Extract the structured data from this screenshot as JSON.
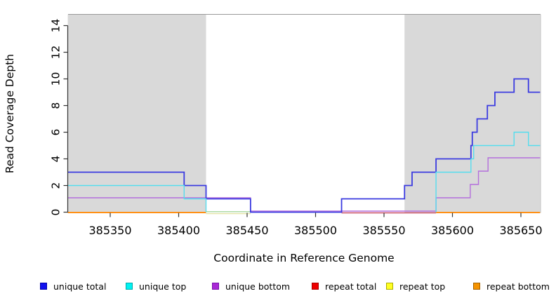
{
  "chart_data": {
    "type": "line",
    "title": "",
    "xlabel": "Coordinate in Reference Genome",
    "ylabel": "Read Coverage Depth",
    "x_range": [
      385319,
      385664
    ],
    "y_range": [
      0,
      15
    ],
    "x_ticks": [
      385350,
      385400,
      385450,
      385500,
      385550,
      385600,
      385650
    ],
    "y_ticks": [
      0,
      2,
      4,
      6,
      8,
      10,
      12,
      14
    ],
    "grid": false,
    "legend_position": "bottom",
    "shading_color": "#D9D9D9",
    "shaded_regions": [
      {
        "from": 385319,
        "to": 385420
      },
      {
        "from": 385565,
        "to": 385664
      }
    ],
    "series": [
      {
        "name": "unique total",
        "color": "#3B3BE0",
        "width": 1.8,
        "steps": [
          [
            385319,
            3
          ],
          [
            385404,
            2
          ],
          [
            385420,
            1
          ],
          [
            385452.5,
            0
          ],
          [
            385519,
            1
          ],
          [
            385565,
            2
          ],
          [
            385570.5,
            3
          ],
          [
            385588,
            4
          ],
          [
            385613.5,
            5
          ],
          [
            385614.5,
            6
          ],
          [
            385618,
            7
          ],
          [
            385625.5,
            8
          ],
          [
            385631,
            9
          ],
          [
            385645,
            10
          ],
          [
            385655.5,
            9
          ]
        ]
      },
      {
        "name": "unique top",
        "color": "#55DDEE",
        "width": 1.4,
        "gap_at_zero": true,
        "steps": [
          [
            385319,
            2
          ],
          [
            385404,
            1
          ],
          [
            385420,
            0
          ],
          [
            385588,
            3
          ],
          [
            385613.5,
            4
          ],
          [
            385615.5,
            5
          ],
          [
            385645,
            6
          ],
          [
            385655.5,
            5
          ]
        ]
      },
      {
        "name": "unique bottom",
        "color": "#B46FDC",
        "width": 1.4,
        "y_nudge": -1.5,
        "steps": [
          [
            385319,
            1
          ],
          [
            385452.5,
            0
          ],
          [
            385588,
            1
          ],
          [
            385613,
            2
          ],
          [
            385619,
            3
          ],
          [
            385626,
            4
          ]
        ]
      },
      {
        "name": "repeat total",
        "color": "#DD2222",
        "width": 1.5,
        "steps": [
          [
            385319,
            0
          ]
        ]
      },
      {
        "name": "repeat top",
        "color": "#EEEE44",
        "width": 1.5,
        "steps": [
          [
            385319,
            0
          ]
        ]
      },
      {
        "name": "repeat bottom",
        "color": "#FF9015",
        "width": 2,
        "steps": [
          [
            385319,
            0
          ]
        ]
      }
    ],
    "zero_line_visible_segments": [
      {
        "from": 385319,
        "to": 385420,
        "color": "#FF9015",
        "dy": 0,
        "width": 2
      },
      {
        "from": 385420,
        "to": 385452.5,
        "color": "#A6D79C",
        "dy": -1.2,
        "width": 1.4
      },
      {
        "from": 385420,
        "to": 385452.5,
        "color": "#E3E3A6",
        "dy": 1.6,
        "width": 1.4
      },
      {
        "from": 385519,
        "to": 385588,
        "color": "#C84A66",
        "dy": 0.5,
        "width": 1.6
      },
      {
        "from": 385588,
        "to": 385664,
        "color": "#FF9015",
        "dy": 0,
        "width": 2
      }
    ],
    "legend": [
      {
        "label": "unique total",
        "fill": "#1111EE",
        "border": "#0000AA"
      },
      {
        "label": "unique top",
        "fill": "#00F2F2",
        "border": "#00AAAA"
      },
      {
        "label": "unique bottom",
        "fill": "#A928D6",
        "border": "#7711AA"
      },
      {
        "label": "repeat total",
        "fill": "#EE0000",
        "border": "#AA0000"
      },
      {
        "label": "repeat top",
        "fill": "#FFFF22",
        "border": "#AAAA00"
      },
      {
        "label": "repeat bottom",
        "fill": "#F59300",
        "border": "#A36100"
      }
    ]
  },
  "frame": {
    "border_top_color": "#999999",
    "border_right_color": "#BBBBBB",
    "axis_color": "#333333"
  }
}
